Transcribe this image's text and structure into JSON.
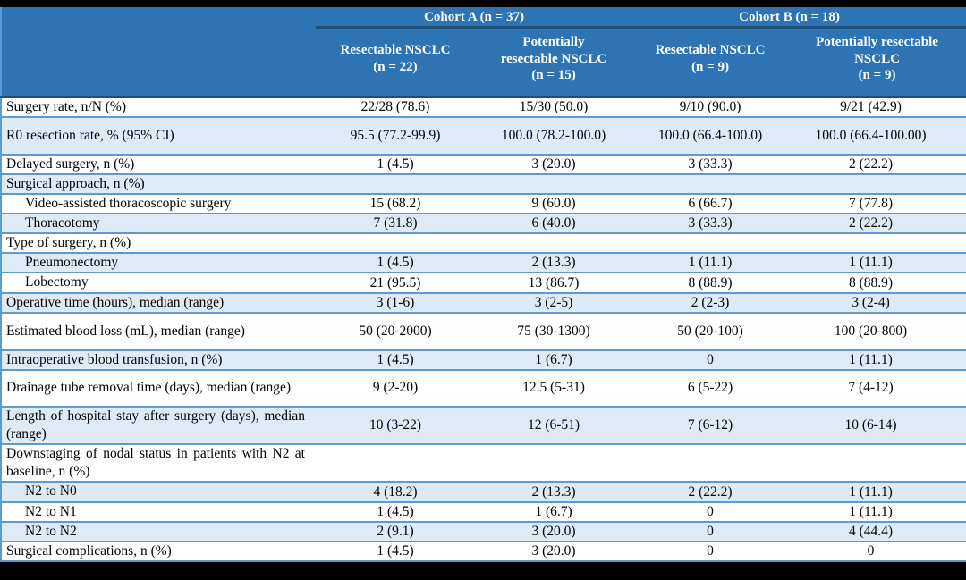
{
  "colors": {
    "header_bg": "#2E74B5",
    "row_shade": "#DEEAF6",
    "grid_line": "#5B9BD5",
    "header_rule": "#1F4E79",
    "frame": "#000000",
    "header_text": "#FFFFFF",
    "body_text": "#000000"
  },
  "table": {
    "cohorts": [
      "Cohort A (n = 37)",
      "Cohort B (n = 18)"
    ],
    "columns": [
      "Resectable NSCLC\n(n = 22)",
      "Potentially\nresectable NSCLC\n(n = 15)",
      "Resectable NSCLC\n(n = 9)",
      "Potentially resectable\nNSCLC\n(n = 9)"
    ],
    "rows": [
      {
        "label": "Surgery rate, n/N (%)",
        "indent": false,
        "tall": false,
        "values": [
          "22/28 (78.6)",
          "15/30 (50.0)",
          "9/10 (90.0)",
          "9/21 (42.9)"
        ]
      },
      {
        "label": "R0 resection rate, % (95% CI)",
        "indent": false,
        "tall": true,
        "values": [
          "95.5 (77.2-99.9)",
          "100.0 (78.2-100.0)",
          "100.0 (66.4-100.0)",
          "100.0 (66.4-100.00)"
        ]
      },
      {
        "label": "Delayed surgery, n (%)",
        "indent": false,
        "tall": false,
        "values": [
          "1 (4.5)",
          "3 (20.0)",
          "3 (33.3)",
          "2 (22.2)"
        ]
      },
      {
        "label": "Surgical approach, n (%)",
        "indent": false,
        "tall": false,
        "values": [
          "",
          "",
          "",
          ""
        ]
      },
      {
        "label": "Video-assisted thoracoscopic surgery",
        "indent": true,
        "tall": false,
        "values": [
          "15 (68.2)",
          "9 (60.0)",
          "6 (66.7)",
          "7 (77.8)"
        ]
      },
      {
        "label": "Thoracotomy",
        "indent": true,
        "tall": false,
        "values": [
          "7 (31.8)",
          "6 (40.0)",
          "3 (33.3)",
          "2 (22.2)"
        ]
      },
      {
        "label": "Type of surgery, n (%)",
        "indent": false,
        "tall": false,
        "values": [
          "",
          "",
          "",
          ""
        ]
      },
      {
        "label": "Pneumonectomy",
        "indent": true,
        "tall": false,
        "values": [
          "1 (4.5)",
          "2 (13.3)",
          "1 (11.1)",
          "1 (11.1)"
        ]
      },
      {
        "label": "Lobectomy",
        "indent": true,
        "tall": false,
        "values": [
          "21 (95.5)",
          "13 (86.7)",
          "8 (88.9)",
          "8 (88.9)"
        ]
      },
      {
        "label": "Operative time (hours), median (range)",
        "indent": false,
        "tall": false,
        "values": [
          "3 (1-6)",
          "3 (2-5)",
          "2 (2-3)",
          "3 (2-4)"
        ]
      },
      {
        "label": "Estimated blood loss (mL), median (range)",
        "indent": false,
        "tall": true,
        "values": [
          "50 (20-2000)",
          "75 (30-1300)",
          "50 (20-100)",
          "100 (20-800)"
        ]
      },
      {
        "label": "Intraoperative blood transfusion, n (%)",
        "indent": false,
        "tall": false,
        "values": [
          "1 (4.5)",
          "1 (6.7)",
          "0",
          "1 (11.1)"
        ]
      },
      {
        "label": "Drainage tube removal time (days), median (range)",
        "indent": false,
        "tall2": true,
        "values": [
          "9 (2-20)",
          "12.5 (5-31)",
          "6 (5-22)",
          "7 (4-12)"
        ]
      },
      {
        "label": "Length of hospital stay after surgery (days), median (range)",
        "indent": false,
        "tall2": true,
        "values": [
          "10 (3-22)",
          "12 (6-51)",
          "7 (6-12)",
          "10 (6-14)"
        ]
      },
      {
        "label": "Downstaging of nodal status in patients with N2 at baseline, n (%)",
        "indent": false,
        "tall2": true,
        "values": [
          "",
          "",
          "",
          ""
        ]
      },
      {
        "label": "N2 to N0",
        "indent": true,
        "tall": false,
        "values": [
          "4 (18.2)",
          "2 (13.3)",
          "2 (22.2)",
          "1 (11.1)"
        ]
      },
      {
        "label": "N2 to N1",
        "indent": true,
        "tall": false,
        "values": [
          "1 (4.5)",
          "1 (6.7)",
          "0",
          "1 (11.1)"
        ]
      },
      {
        "label": "N2 to N2",
        "indent": true,
        "tall": false,
        "values": [
          "2 (9.1)",
          "3 (20.0)",
          "0",
          "4 (44.4)"
        ]
      },
      {
        "label": "Surgical complications, n (%)",
        "indent": false,
        "tall": false,
        "values": [
          "1 (4.5)",
          "3 (20.0)",
          "0",
          "0"
        ]
      }
    ]
  }
}
